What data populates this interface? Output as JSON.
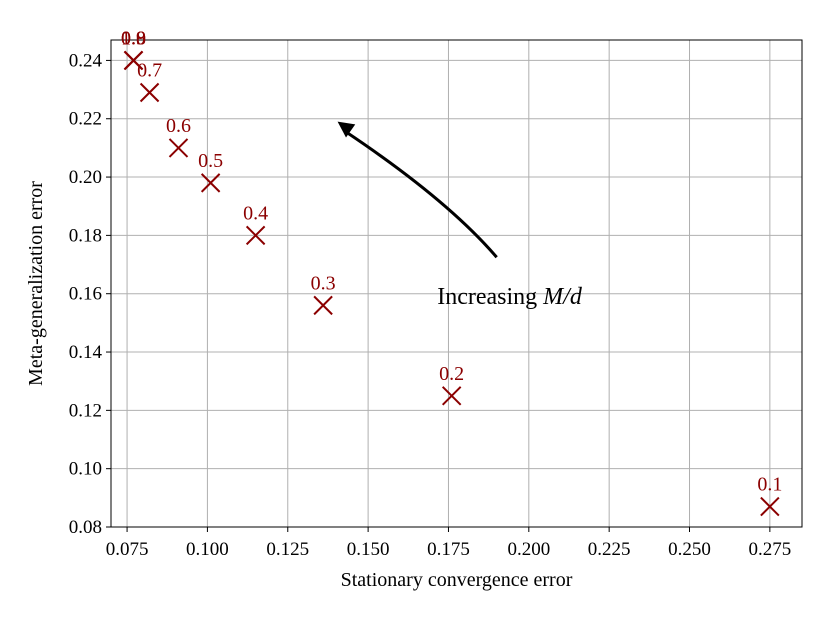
{
  "chart_data": {
    "type": "scatter",
    "xlabel": "Stationary convergence error",
    "ylabel": "Meta-generalization error",
    "xlim": [
      0.07,
      0.285
    ],
    "ylim": [
      0.08,
      0.247
    ],
    "xticks": [
      "0.075",
      "0.100",
      "0.125",
      "0.150",
      "0.175",
      "0.200",
      "0.225",
      "0.250",
      "0.275"
    ],
    "yticks": [
      "0.08",
      "0.10",
      "0.12",
      "0.14",
      "0.16",
      "0.18",
      "0.20",
      "0.22",
      "0.24"
    ],
    "grid": true,
    "marker": "x",
    "color": "#8b0000",
    "points": [
      {
        "label": "0.1",
        "x": 0.275,
        "y": 0.087
      },
      {
        "label": "0.2",
        "x": 0.176,
        "y": 0.125
      },
      {
        "label": "0.3",
        "x": 0.136,
        "y": 0.156
      },
      {
        "label": "0.4",
        "x": 0.115,
        "y": 0.18
      },
      {
        "label": "0.5",
        "x": 0.101,
        "y": 0.198
      },
      {
        "label": "0.6",
        "x": 0.091,
        "y": 0.21
      },
      {
        "label": "0.7",
        "x": 0.082,
        "y": 0.229
      },
      {
        "label": "0.8",
        "x": 0.077,
        "y": 0.24
      },
      {
        "label": "0.9",
        "x": 0.077,
        "y": 0.24
      },
      {
        "label": "1.0",
        "x": 0.077,
        "y": 0.24
      }
    ],
    "annotation": {
      "text_prefix": "Increasing ",
      "text_math": "M/d",
      "x": 0.1715,
      "y": 0.1565,
      "arrow_from": [
        0.19,
        0.1725
      ],
      "arrow_to": [
        0.1405,
        0.219
      ]
    }
  }
}
